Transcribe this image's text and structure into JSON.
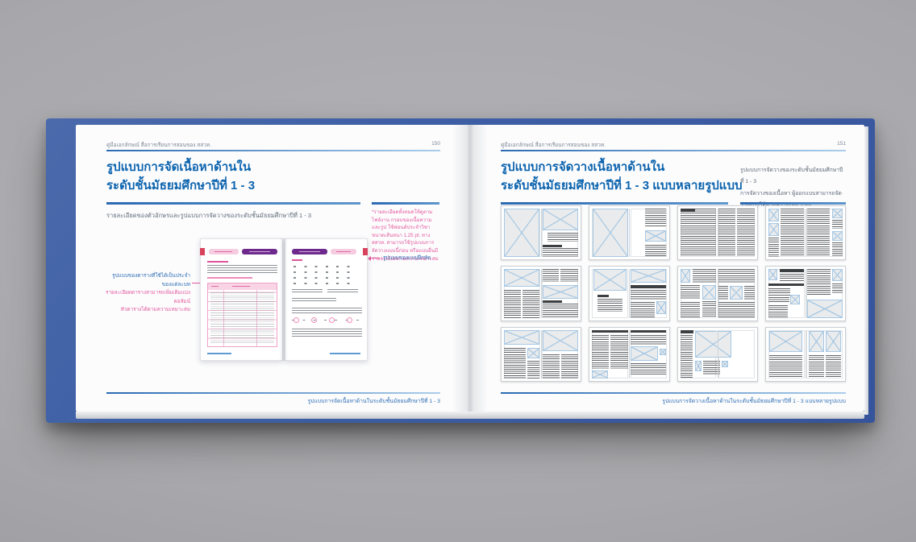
{
  "colors": {
    "cover_blue": "#3e5fa5",
    "title_blue": "#0d64ae",
    "rule_blue": "#2b6ab3",
    "annotation_pink": "#e35a9e",
    "mini_purple": "#6d2a8c",
    "mini_pink_light": "#f6cce0",
    "mini_red_tab": "#d7425c",
    "background_gray": "#a8a8ac"
  },
  "left_page": {
    "header": "คู่มือเอกลักษณ์ สื่อการเรียนการสอนของ สสวท.",
    "page_number": "150",
    "title_line1": "รูปแบบการจัดเนื้อหาด้านใน",
    "title_line2": "ระดับชั้นมัธยมศึกษาปีที่ 1 - 3",
    "body_text": "รายละเอียดของตัวอักษรและรูปแบบการจัดวางของระดับชั้นมัธยมศึกษาปีที่ 1 - 3",
    "side_note": "*รายละเอียดทั้งหมดให้ดูตามไฟล์งาน กรอบของเนื้อความ และรูป ใช้ฟอนต์ประจำวิชา ขนาดเส้นหนา 1.25 pt. ทาง สสวท. สามารถใช้รูปแบบการจัดวางแบบนี้ก่อน หรือแบบอื่นมีรายละเอียดตามความเหมาะสม",
    "annotation_left_line1": "รูปแบบของตารางที่ใช้ได้เป็นประจำของแต่ละบท",
    "annotation_left_line2": "รายละเอียดตารางสามารถเพิ่มเติมแบ่งคอลัมน์",
    "annotation_left_line3": "หัวตารางได้ตามความเหมาะสม",
    "annotation_right": "รูปแบบของแบบฝึกหัด",
    "footer": "รูปแบบการจัดเนื้อหาด้านในระดับชั้นมัธยมศึกษาปีที่ 1 - 3"
  },
  "right_page": {
    "header": "คู่มือเอกลักษณ์ สื่อการเรียนการสอนของ สสวท.",
    "page_number": "151",
    "title_line1": "รูปแบบการจัดวางเนื้อหาด้านใน",
    "title_line2": "ระดับชั้นมัธยมศึกษาปีที่ 1 - 3 แบบหลายรูปแบบ",
    "intro_line1": "รูปแบบการจัดวางของระดับชั้นมัธยมศึกษาปีที่ 1 - 3",
    "intro_line2": "การจัดวางของเนื้อหา ผู้ออกแบบสามารถจัดวางแบบได้ตามความเหมาะสม",
    "footer": "รูปแบบการจัดวางเนื้อหาด้านในระดับชั้นมัธยมศึกษาปีที่ 1 - 3 แบบหลายรูปแบบ",
    "thumbnails": [
      {
        "blocks": [
          [
            "img",
            0,
            0,
            48,
            100
          ],
          [
            "img",
            52,
            0,
            48,
            44
          ],
          [
            "txt",
            58,
            50,
            42,
            18
          ],
          [
            "hdr",
            52,
            74,
            26,
            5
          ],
          [
            "txt",
            52,
            81,
            48,
            19
          ]
        ]
      },
      {
        "blocks": [
          [
            "img",
            1,
            0,
            47,
            100
          ],
          [
            "txt",
            71,
            0,
            29,
            38
          ],
          [
            "img",
            71,
            44,
            29,
            24
          ],
          [
            "txt",
            71,
            74,
            29,
            26
          ]
        ]
      },
      {
        "blocks": [
          [
            "txt",
            0,
            0,
            48,
            100
          ],
          [
            "hdr",
            0,
            0,
            20,
            6
          ],
          [
            "txt",
            52,
            0,
            22,
            100
          ],
          [
            "txt",
            76,
            0,
            24,
            100
          ]
        ]
      },
      {
        "blocks": [
          [
            "img",
            0,
            0,
            14,
            27
          ],
          [
            "img",
            0,
            30,
            14,
            27
          ],
          [
            "txt",
            0,
            60,
            14,
            40
          ],
          [
            "txt",
            16,
            0,
            32,
            100
          ],
          [
            "txt",
            52,
            0,
            31,
            100
          ],
          [
            "img",
            86,
            0,
            14,
            20
          ],
          [
            "txt",
            86,
            24,
            14,
            18
          ],
          [
            "img",
            86,
            46,
            14,
            20
          ],
          [
            "txt",
            86,
            70,
            14,
            30
          ]
        ]
      },
      {
        "blocks": [
          [
            "img",
            0,
            0,
            48,
            36
          ],
          [
            "txt",
            0,
            42,
            23,
            58
          ],
          [
            "txt",
            25,
            42,
            23,
            58
          ],
          [
            "txt",
            52,
            0,
            22,
            26
          ],
          [
            "txt",
            76,
            0,
            24,
            26
          ],
          [
            "img",
            52,
            32,
            48,
            28
          ],
          [
            "hdr",
            52,
            64,
            26,
            5
          ],
          [
            "txt",
            52,
            71,
            48,
            29
          ]
        ]
      },
      {
        "blocks": [
          [
            "img",
            2,
            0,
            44,
            44
          ],
          [
            "hdr",
            7,
            52,
            16,
            5
          ],
          [
            "txt",
            7,
            60,
            34,
            28
          ],
          [
            "img",
            52,
            0,
            48,
            28
          ],
          [
            "hdr",
            52,
            33,
            48,
            6
          ],
          [
            "txt",
            52,
            43,
            48,
            20
          ],
          [
            "txt",
            52,
            68,
            32,
            32
          ],
          [
            "img",
            86,
            66,
            14,
            26
          ]
        ]
      },
      {
        "blocks": [
          [
            "img",
            0,
            0,
            14,
            28
          ],
          [
            "txt",
            17,
            0,
            31,
            28
          ],
          [
            "txt",
            0,
            33,
            27,
            29
          ],
          [
            "img",
            30,
            33,
            18,
            29
          ],
          [
            "txt",
            0,
            67,
            27,
            33
          ],
          [
            "txt",
            30,
            66,
            18,
            34
          ],
          [
            "txt",
            52,
            0,
            48,
            30
          ],
          [
            "txt",
            52,
            35,
            13,
            27
          ],
          [
            "img",
            67,
            35,
            17,
            27
          ],
          [
            "txt",
            86,
            35,
            14,
            27
          ],
          [
            "txt",
            52,
            68,
            48,
            32
          ]
        ]
      },
      {
        "blocks": [
          [
            "img",
            0,
            0,
            12,
            22
          ],
          [
            "hdr",
            15,
            0,
            33,
            6
          ],
          [
            "txt",
            15,
            9,
            33,
            15
          ],
          [
            "hdr",
            0,
            30,
            48,
            5
          ],
          [
            "txt",
            0,
            39,
            30,
            15
          ],
          [
            "txt",
            0,
            58,
            28,
            12
          ],
          [
            "img",
            30,
            52,
            13,
            20
          ],
          [
            "txt",
            0,
            74,
            26,
            26
          ],
          [
            "txt",
            52,
            0,
            32,
            56
          ],
          [
            "img",
            86,
            0,
            14,
            24
          ],
          [
            "txt",
            86,
            30,
            14,
            20
          ],
          [
            "img",
            52,
            62,
            48,
            38
          ]
        ]
      },
      {
        "blocks": [
          [
            "img",
            0,
            0,
            48,
            31
          ],
          [
            "txt",
            0,
            37,
            29,
            63
          ],
          [
            "img",
            31,
            37,
            17,
            22
          ],
          [
            "txt",
            31,
            63,
            17,
            37
          ],
          [
            "img",
            52,
            0,
            48,
            44
          ],
          [
            "txt",
            52,
            51,
            23,
            49
          ],
          [
            "txt",
            77,
            51,
            23,
            49
          ]
        ]
      },
      {
        "blocks": [
          [
            "hdr",
            0,
            0,
            48,
            6
          ],
          [
            "txt",
            0,
            10,
            23,
            70
          ],
          [
            "txt",
            25,
            10,
            23,
            70
          ],
          [
            "img",
            0,
            83,
            21,
            17
          ],
          [
            "hdr",
            52,
            0,
            48,
            6
          ],
          [
            "txt",
            52,
            10,
            48,
            20
          ],
          [
            "img",
            52,
            34,
            37,
            30
          ],
          [
            "img",
            91,
            38,
            9,
            14
          ],
          [
            "txt",
            52,
            69,
            48,
            25
          ]
        ]
      },
      {
        "blocks": [
          [
            "hdr",
            0,
            0,
            18,
            7
          ],
          [
            "txt",
            0,
            10,
            17,
            90
          ],
          [
            "img",
            20,
            3,
            49,
            54
          ],
          [
            "img",
            20,
            63,
            9,
            22
          ],
          [
            "txt",
            31,
            63,
            23,
            29
          ],
          [
            "img",
            56,
            63,
            8,
            14
          ]
        ]
      },
      {
        "blocks": [
          [
            "img",
            1,
            2,
            45,
            43
          ],
          [
            "txt",
            1,
            52,
            45,
            46
          ],
          [
            "img",
            54,
            2,
            21,
            43
          ],
          [
            "img",
            77,
            2,
            21,
            43
          ],
          [
            "txt",
            54,
            52,
            21,
            46
          ],
          [
            "txt",
            77,
            52,
            21,
            46
          ]
        ]
      }
    ]
  }
}
